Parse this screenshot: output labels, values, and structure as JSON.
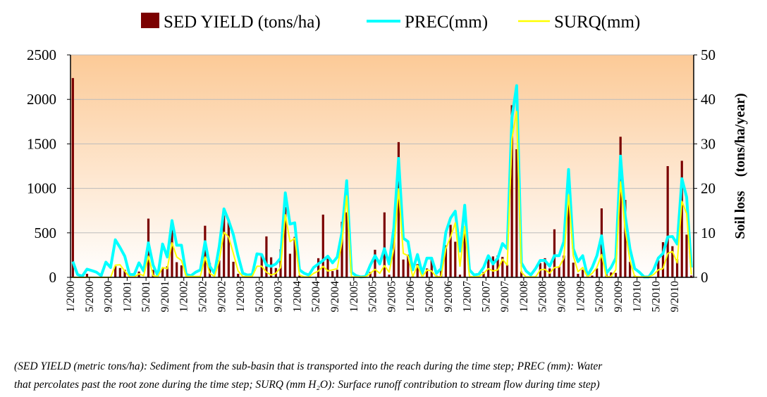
{
  "chart_data": {
    "type": "bar+line",
    "legend": {
      "placement": "top",
      "entries": [
        "SED YIELD (tons/ha)",
        "PREC(mm)",
        "SURQ(mm)"
      ]
    },
    "right_axis_label": "Soil loss    (tons/ha/year)",
    "left_axis": {
      "ylim": [
        0,
        2500
      ],
      "ticks": [
        "0",
        "500",
        "1000",
        "1500",
        "2000",
        "2500"
      ]
    },
    "right_axis": {
      "ylim": [
        0,
        50
      ],
      "ticks": [
        "0",
        "10",
        "20",
        "30",
        "40",
        "50"
      ]
    },
    "grid": true,
    "x_start": "1/2000",
    "x_end": "12/2010",
    "x_interval": "monthly",
    "x_tick_labels": [
      "1/2000",
      "5/2000",
      "9/2000",
      "1/2001",
      "5/2001",
      "9/2001",
      "1/2002",
      "5/2002",
      "9/2002",
      "1/2003",
      "5/2003",
      "9/2003",
      "1/2004",
      "5/2004",
      "9/2004",
      "1/2005",
      "5/2005",
      "9/2005",
      "1/2006",
      "5/2006",
      "9/2006",
      "1/2007",
      "5/2007",
      "9/2007",
      "1/2008",
      "5/2008",
      "9/2008",
      "1/2009",
      "5/2009",
      "9/2009",
      "1/2010",
      "5/2010",
      "9/2010"
    ],
    "colors": {
      "sed_yield": "#7B0000",
      "prec": "#00FFFF",
      "surq": "#FFFF00",
      "plot_bg_top": "#FCCA97",
      "plot_bg_bottom": "#FFFFFF"
    },
    "series": [
      {
        "name": "SED YIELD (tons/ha)",
        "type": "bar",
        "axis": "right",
        "values": [
          44.8,
          0,
          0,
          0.8,
          0,
          0,
          0,
          0,
          0,
          2.5,
          2.1,
          1.7,
          0,
          0,
          1.3,
          0,
          13.2,
          1.7,
          0,
          2.1,
          2.5,
          10.7,
          3.4,
          2.7,
          0,
          0,
          0,
          0,
          11.6,
          3.2,
          0,
          3.8,
          13.9,
          12.7,
          3.5,
          0.8,
          0,
          0,
          0,
          0,
          4.9,
          9.2,
          4.5,
          2.1,
          6.3,
          15.8,
          5.3,
          9.1,
          0.4,
          0,
          0,
          0,
          4.3,
          14.1,
          4.2,
          1.4,
          1.7,
          12.5,
          14.6,
          0,
          0,
          0,
          0,
          1.2,
          6.2,
          0,
          14.6,
          0.6,
          11.4,
          30.4,
          4.0,
          5.1,
          0.4,
          3.0,
          0,
          2.0,
          4.5,
          0.4,
          1.7,
          7.2,
          11.8,
          8.0,
          0.6,
          10.4,
          0,
          0,
          0,
          1.2,
          4.2,
          4.7,
          4.9,
          4.6,
          2.8,
          38.7,
          28.8,
          1.3,
          0,
          0,
          0,
          3.2,
          4.3,
          2.0,
          10.8,
          2.5,
          4.9,
          16.5,
          3.3,
          0.8,
          1.7,
          0,
          0.4,
          2.0,
          15.5,
          0.9,
          1.1,
          1.0,
          31.6,
          17.4,
          3.5,
          0.4,
          0,
          0,
          0,
          0,
          3.8,
          7.9,
          25.0,
          7.0,
          4.1,
          26.2,
          9.6,
          0.4
        ]
      },
      {
        "name": "PREC(mm)",
        "type": "line",
        "axis": "left",
        "values": [
          177,
          32,
          13,
          92,
          76,
          58,
          18,
          171,
          111,
          422,
          335,
          237,
          32,
          32,
          163,
          71,
          388,
          137,
          18,
          374,
          229,
          638,
          361,
          361,
          32,
          18,
          58,
          84,
          401,
          124,
          45,
          348,
          770,
          638,
          480,
          243,
          45,
          26,
          32,
          264,
          256,
          137,
          124,
          150,
          216,
          949,
          599,
          612,
          84,
          45,
          26,
          111,
          150,
          190,
          237,
          163,
          229,
          506,
          1086,
          58,
          18,
          5,
          10,
          137,
          243,
          150,
          322,
          150,
          559,
          1337,
          440,
          401,
          84,
          256,
          45,
          216,
          216,
          45,
          98,
          506,
          665,
          744,
          295,
          810,
          84,
          26,
          37,
          111,
          243,
          150,
          216,
          380,
          322,
          1798,
          2155,
          163,
          71,
          26,
          98,
          190,
          190,
          124,
          243,
          243,
          401,
          1213,
          322,
          177,
          243,
          18,
          111,
          243,
          467,
          45,
          111,
          216,
          1363,
          691,
          322,
          98,
          58,
          5,
          5,
          84,
          216,
          269,
          454,
          459,
          374,
          1108,
          902,
          111
        ]
      },
      {
        "name": "SURQ(mm)",
        "type": "line",
        "axis": "left",
        "values": [
          0,
          0,
          0,
          0,
          0,
          0,
          0,
          0,
          0,
          137,
          142,
          71,
          5,
          5,
          40,
          18,
          237,
          18,
          10,
          111,
          98,
          388,
          229,
          190,
          10,
          10,
          10,
          10,
          229,
          45,
          10,
          190,
          506,
          454,
          269,
          71,
          10,
          10,
          10,
          124,
          124,
          58,
          26,
          45,
          111,
          704,
          401,
          440,
          26,
          5,
          5,
          45,
          71,
          124,
          71,
          84,
          98,
          401,
          915,
          5,
          5,
          5,
          5,
          45,
          90,
          45,
          132,
          58,
          322,
          994,
          269,
          243,
          5,
          137,
          5,
          84,
          71,
          5,
          10,
          322,
          454,
          612,
          124,
          572,
          10,
          5,
          10,
          45,
          98,
          71,
          84,
          203,
          137,
          1561,
          1864,
          58,
          5,
          5,
          5,
          84,
          90,
          45,
          111,
          116,
          216,
          928,
          243,
          63,
          111,
          5,
          45,
          111,
          256,
          5,
          10,
          84,
          1073,
          533,
          190,
          10,
          5,
          5,
          5,
          32,
          84,
          98,
          269,
          290,
          163,
          854,
          717,
          32
        ]
      }
    ]
  },
  "footnote": {
    "line1": "(SED YIELD (metric tons/ha): Sediment from the sub-basin that is transported into the reach during the time step; PREC (mm): Water",
    "line2": "that percolates past the root zone during the time step;  SURQ (mm H₂O): Surface runoff contribution to stream flow during time step)"
  }
}
